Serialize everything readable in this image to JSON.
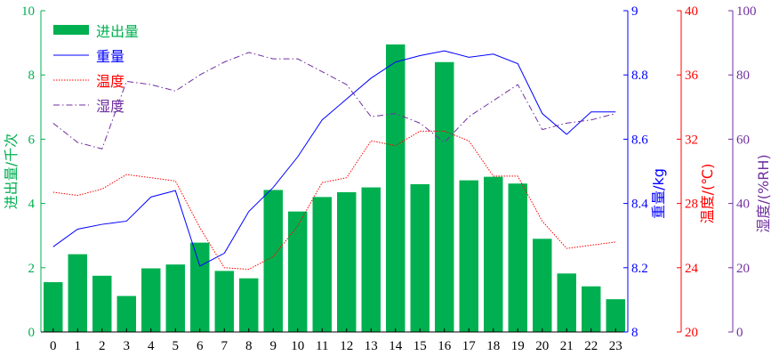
{
  "chart_data": {
    "type": "bar+line",
    "title": "",
    "categories": [
      "0",
      "1",
      "2",
      "3",
      "4",
      "5",
      "6",
      "7",
      "8",
      "9",
      "10",
      "11",
      "12",
      "13",
      "14",
      "15",
      "16",
      "17",
      "18",
      "19",
      "20",
      "21",
      "22",
      "23"
    ],
    "colors": {
      "bars": "#00b050",
      "weight": "#0000ff",
      "temperature": "#ff0000",
      "humidity": "#7030a0",
      "left_axis": "#00b050"
    },
    "series": [
      {
        "name": "进出量",
        "type": "bar",
        "axis": "left",
        "values": [
          1.55,
          2.42,
          1.75,
          1.12,
          1.98,
          2.1,
          2.78,
          1.9,
          1.67,
          4.42,
          3.75,
          4.2,
          4.35,
          4.5,
          8.95,
          4.6,
          8.4,
          4.72,
          4.83,
          4.62,
          2.9,
          1.82,
          1.42,
          1.02
        ]
      },
      {
        "name": "重量",
        "type": "line",
        "axis": "right1",
        "style": "solid",
        "values": [
          8.265,
          8.32,
          8.335,
          8.345,
          8.42,
          8.44,
          8.205,
          8.245,
          8.375,
          8.45,
          8.545,
          8.66,
          8.725,
          8.79,
          8.84,
          8.86,
          8.875,
          8.855,
          8.865,
          8.835,
          8.68,
          8.615,
          8.685,
          8.685
        ]
      },
      {
        "name": "温度",
        "type": "line",
        "axis": "right2",
        "style": "dotted",
        "values": [
          28.7,
          28.5,
          28.9,
          29.8,
          29.6,
          29.4,
          26.5,
          24.0,
          23.9,
          24.7,
          26.6,
          29.3,
          29.6,
          31.9,
          31.6,
          32.5,
          32.5,
          31.9,
          29.7,
          29.7,
          26.9,
          25.2,
          25.4,
          25.6
        ]
      },
      {
        "name": "湿度",
        "type": "line",
        "axis": "right3",
        "style": "dashdot",
        "values": [
          65,
          59,
          57,
          78,
          77,
          75,
          80,
          84,
          87,
          85,
          85,
          81,
          77,
          67,
          68,
          65,
          59,
          67,
          72,
          77,
          63,
          65,
          66,
          68
        ]
      }
    ],
    "axes": {
      "left": {
        "label": "进出量/千次",
        "range": [
          0,
          10
        ],
        "ticks": [
          "0",
          "2",
          "4",
          "6",
          "8",
          "10"
        ]
      },
      "right1": {
        "label": "重量/kg",
        "range": [
          8.0,
          9.0
        ],
        "ticks": [
          "8",
          "8.2",
          "8.4",
          "8.6",
          "8.8",
          "9"
        ]
      },
      "right2": {
        "label": "温度/(℃)",
        "range": [
          20,
          40
        ],
        "ticks": [
          "20",
          "24",
          "28",
          "32",
          "36",
          "40"
        ]
      },
      "right3": {
        "label": "湿度/(%RH)",
        "range": [
          0,
          100
        ],
        "ticks": [
          "0",
          "20",
          "40",
          "60",
          "80",
          "100"
        ]
      }
    },
    "legend": {
      "position": "top-left"
    },
    "grid": false
  }
}
